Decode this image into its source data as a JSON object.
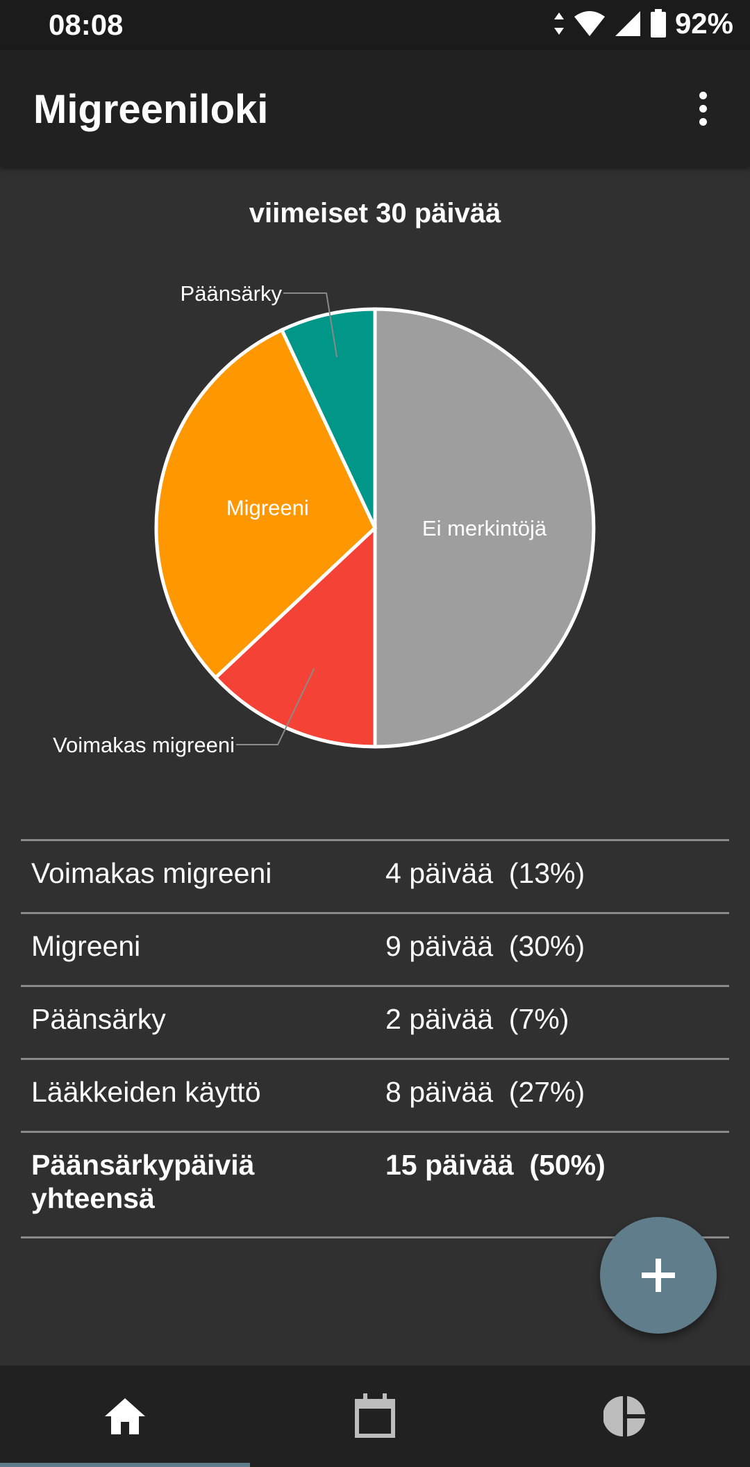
{
  "status": {
    "time": "08:08",
    "battery": "92%"
  },
  "app": {
    "title": "Migreeniloki"
  },
  "chart_data": {
    "type": "pie",
    "title": "viimeiset 30 päivää",
    "slices": [
      {
        "label": "Ei merkintöjä",
        "value": 50,
        "color": "#9e9e9e"
      },
      {
        "label": "Voimakas migreeni",
        "value": 13,
        "color": "#f44336"
      },
      {
        "label": "Migreeni",
        "value": 30,
        "color": "#ff9800"
      },
      {
        "label": "Päänsärky",
        "value": 7,
        "color": "#009688"
      }
    ]
  },
  "stats": {
    "rows": [
      {
        "label": "Voimakas migreeni",
        "value": "4 päivää  (13%)"
      },
      {
        "label": "Migreeni",
        "value": "9 päivää  (30%)"
      },
      {
        "label": "Päänsärky",
        "value": "2 päivää  (7%)"
      },
      {
        "label": "Lääkkeiden käyttö",
        "value": "8 päivää  (27%)"
      }
    ],
    "total": {
      "label": "Päänsärkypäiviä yhteensä",
      "value": "15 päivää  (50%)"
    }
  },
  "nav": {
    "items": [
      "home-icon",
      "calendar-icon",
      "statistics-icon"
    ],
    "active": 0
  },
  "colors": {
    "accent": "#607d8b",
    "background": "#303030",
    "bar": "#212121"
  }
}
